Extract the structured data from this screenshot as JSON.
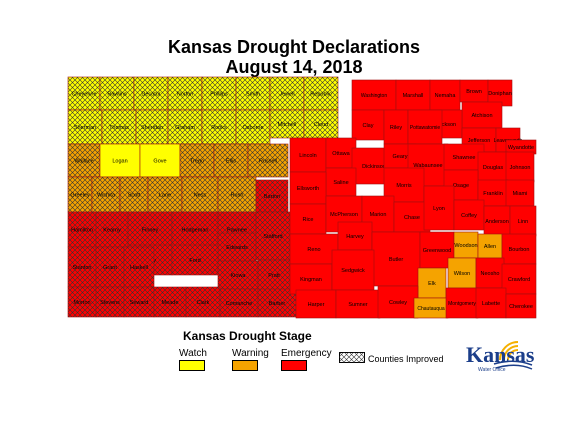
{
  "title_line1": "Kansas Drought Declarations",
  "title_line2": "August 14, 2018",
  "legend": {
    "title": "Kansas Drought Stage",
    "watch": "Watch",
    "warning": "Warning",
    "emergency": "Emergency",
    "improved": "Counties Improved"
  },
  "colors": {
    "watch": "#ffff00",
    "warning": "#f5a300",
    "emergency": "#ff0000",
    "border": "#a01010"
  },
  "logo": {
    "word": "Kansas",
    "sub": "Water Office",
    "icon": "sunrise-logo-icon"
  },
  "counties": [
    {
      "name": "Cheyenne",
      "stage": "watch",
      "improved": true
    },
    {
      "name": "Rawlins",
      "stage": "watch",
      "improved": true
    },
    {
      "name": "Decatur",
      "stage": "watch",
      "improved": true
    },
    {
      "name": "Norton",
      "stage": "watch",
      "improved": true
    },
    {
      "name": "Phillips",
      "stage": "watch",
      "improved": true
    },
    {
      "name": "Smith",
      "stage": "watch",
      "improved": true
    },
    {
      "name": "Jewell",
      "stage": "watch",
      "improved": true
    },
    {
      "name": "Republic",
      "stage": "watch",
      "improved": true
    },
    {
      "name": "Sherman",
      "stage": "watch",
      "improved": true
    },
    {
      "name": "Thomas",
      "stage": "watch",
      "improved": true
    },
    {
      "name": "Sheridan",
      "stage": "watch",
      "improved": true
    },
    {
      "name": "Graham",
      "stage": "watch",
      "improved": true
    },
    {
      "name": "Rooks",
      "stage": "watch",
      "improved": true
    },
    {
      "name": "Osborne",
      "stage": "watch",
      "improved": true
    },
    {
      "name": "Mitchell",
      "stage": "watch",
      "improved": true
    },
    {
      "name": "Cloud",
      "stage": "watch",
      "improved": true
    },
    {
      "name": "Wallace",
      "stage": "warning",
      "improved": true
    },
    {
      "name": "Logan",
      "stage": "watch",
      "improved": false
    },
    {
      "name": "Gove",
      "stage": "watch",
      "improved": false
    },
    {
      "name": "Trego",
      "stage": "warning",
      "improved": true
    },
    {
      "name": "Ellis",
      "stage": "warning",
      "improved": true
    },
    {
      "name": "Russell",
      "stage": "warning",
      "improved": true
    },
    {
      "name": "Greeley",
      "stage": "warning",
      "improved": true
    },
    {
      "name": "Wichita",
      "stage": "warning",
      "improved": true
    },
    {
      "name": "Scott",
      "stage": "warning",
      "improved": true
    },
    {
      "name": "Lane",
      "stage": "warning",
      "improved": true
    },
    {
      "name": "Ness",
      "stage": "warning",
      "improved": true
    },
    {
      "name": "Rush",
      "stage": "warning",
      "improved": true
    },
    {
      "name": "Barton",
      "stage": "emergency",
      "improved": true
    },
    {
      "name": "Hamilton",
      "stage": "emergency",
      "improved": true
    },
    {
      "name": "Kearny",
      "stage": "emergency",
      "improved": true
    },
    {
      "name": "Finney",
      "stage": "emergency",
      "improved": true
    },
    {
      "name": "Hodgeman",
      "stage": "emergency",
      "improved": true
    },
    {
      "name": "Pawnee",
      "stage": "emergency",
      "improved": true
    },
    {
      "name": "Edwards",
      "stage": "emergency",
      "improved": true
    },
    {
      "name": "Stafford",
      "stage": "emergency",
      "improved": true
    },
    {
      "name": "Gray",
      "stage": "emergency",
      "improved": true
    },
    {
      "name": "Ford",
      "stage": "emergency",
      "improved": true
    },
    {
      "name": "Stanton",
      "stage": "emergency",
      "improved": true
    },
    {
      "name": "Grant",
      "stage": "emergency",
      "improved": true
    },
    {
      "name": "Haskell",
      "stage": "emergency",
      "improved": true
    },
    {
      "name": "Kiowa",
      "stage": "emergency",
      "improved": true
    },
    {
      "name": "Pratt",
      "stage": "emergency",
      "improved": true
    },
    {
      "name": "Morton",
      "stage": "emergency",
      "improved": true
    },
    {
      "name": "Stevens",
      "stage": "emergency",
      "improved": true
    },
    {
      "name": "Seward",
      "stage": "emergency",
      "improved": true
    },
    {
      "name": "Meade",
      "stage": "emergency",
      "improved": true
    },
    {
      "name": "Clark",
      "stage": "emergency",
      "improved": true
    },
    {
      "name": "Comanche",
      "stage": "emergency",
      "improved": true
    },
    {
      "name": "Barber",
      "stage": "emergency",
      "improved": true
    },
    {
      "name": "Washington",
      "stage": "emergency",
      "improved": false
    },
    {
      "name": "Marshall",
      "stage": "emergency",
      "improved": false
    },
    {
      "name": "Nemaha",
      "stage": "emergency",
      "improved": false
    },
    {
      "name": "Brown",
      "stage": "emergency",
      "improved": false
    },
    {
      "name": "Doniphan",
      "stage": "emergency",
      "improved": false
    },
    {
      "name": "Atchison",
      "stage": "emergency",
      "improved": false
    },
    {
      "name": "Jackson",
      "stage": "emergency",
      "improved": false
    },
    {
      "name": "Clay",
      "stage": "emergency",
      "improved": false
    },
    {
      "name": "Riley",
      "stage": "emergency",
      "improved": false
    },
    {
      "name": "Pottawatomie",
      "stage": "emergency",
      "improved": false
    },
    {
      "name": "Jefferson",
      "stage": "emergency",
      "improved": false
    },
    {
      "name": "Leavenworth",
      "stage": "emergency",
      "improved": false
    },
    {
      "name": "Wyandotte",
      "stage": "emergency",
      "improved": false
    },
    {
      "name": "Lincoln",
      "stage": "emergency",
      "improved": false
    },
    {
      "name": "Ottawa",
      "stage": "emergency",
      "improved": false
    },
    {
      "name": "Dickinson",
      "stage": "emergency",
      "improved": false
    },
    {
      "name": "Geary",
      "stage": "emergency",
      "improved": false
    },
    {
      "name": "Wabaunsee",
      "stage": "emergency",
      "improved": false
    },
    {
      "name": "Shawnee",
      "stage": "emergency",
      "improved": false
    },
    {
      "name": "Douglas",
      "stage": "emergency",
      "improved": false
    },
    {
      "name": "Johnson",
      "stage": "emergency",
      "improved": false
    },
    {
      "name": "Saline",
      "stage": "emergency",
      "improved": false
    },
    {
      "name": "Ellsworth",
      "stage": "emergency",
      "improved": false
    },
    {
      "name": "Morris",
      "stage": "emergency",
      "improved": false
    },
    {
      "name": "Osage",
      "stage": "emergency",
      "improved": false
    },
    {
      "name": "Franklin",
      "stage": "emergency",
      "improved": false
    },
    {
      "name": "Miami",
      "stage": "emergency",
      "improved": false
    },
    {
      "name": "Rice",
      "stage": "emergency",
      "improved": false
    },
    {
      "name": "McPherson",
      "stage": "emergency",
      "improved": false
    },
    {
      "name": "Marion",
      "stage": "emergency",
      "improved": false
    },
    {
      "name": "Chase",
      "stage": "emergency",
      "improved": false
    },
    {
      "name": "Lyon",
      "stage": "emergency",
      "improved": false
    },
    {
      "name": "Coffey",
      "stage": "emergency",
      "improved": false
    },
    {
      "name": "Anderson",
      "stage": "emergency",
      "improved": false
    },
    {
      "name": "Linn",
      "stage": "emergency",
      "improved": false
    },
    {
      "name": "Reno",
      "stage": "emergency",
      "improved": false
    },
    {
      "name": "Harvey",
      "stage": "emergency",
      "improved": false
    },
    {
      "name": "Butler",
      "stage": "emergency",
      "improved": false
    },
    {
      "name": "Greenwood",
      "stage": "emergency",
      "improved": false
    },
    {
      "name": "Woodson",
      "stage": "warning",
      "improved": false
    },
    {
      "name": "Allen",
      "stage": "warning",
      "improved": false
    },
    {
      "name": "Bourbon",
      "stage": "emergency",
      "improved": false
    },
    {
      "name": "Kingman",
      "stage": "emergency",
      "improved": false
    },
    {
      "name": "Sedgwick",
      "stage": "emergency",
      "improved": false
    },
    {
      "name": "Elk",
      "stage": "warning",
      "improved": false
    },
    {
      "name": "Wilson",
      "stage": "warning",
      "improved": false
    },
    {
      "name": "Neosho",
      "stage": "emergency",
      "improved": false
    },
    {
      "name": "Crawford",
      "stage": "emergency",
      "improved": false
    },
    {
      "name": "Harper",
      "stage": "emergency",
      "improved": false
    },
    {
      "name": "Sumner",
      "stage": "emergency",
      "improved": false
    },
    {
      "name": "Cowley",
      "stage": "emergency",
      "improved": false
    },
    {
      "name": "Chautauqua",
      "stage": "warning",
      "improved": false
    },
    {
      "name": "Montgomery",
      "stage": "emergency",
      "improved": false
    },
    {
      "name": "Labette",
      "stage": "emergency",
      "improved": false
    },
    {
      "name": "Cherokee",
      "stage": "emergency",
      "improved": false
    }
  ]
}
